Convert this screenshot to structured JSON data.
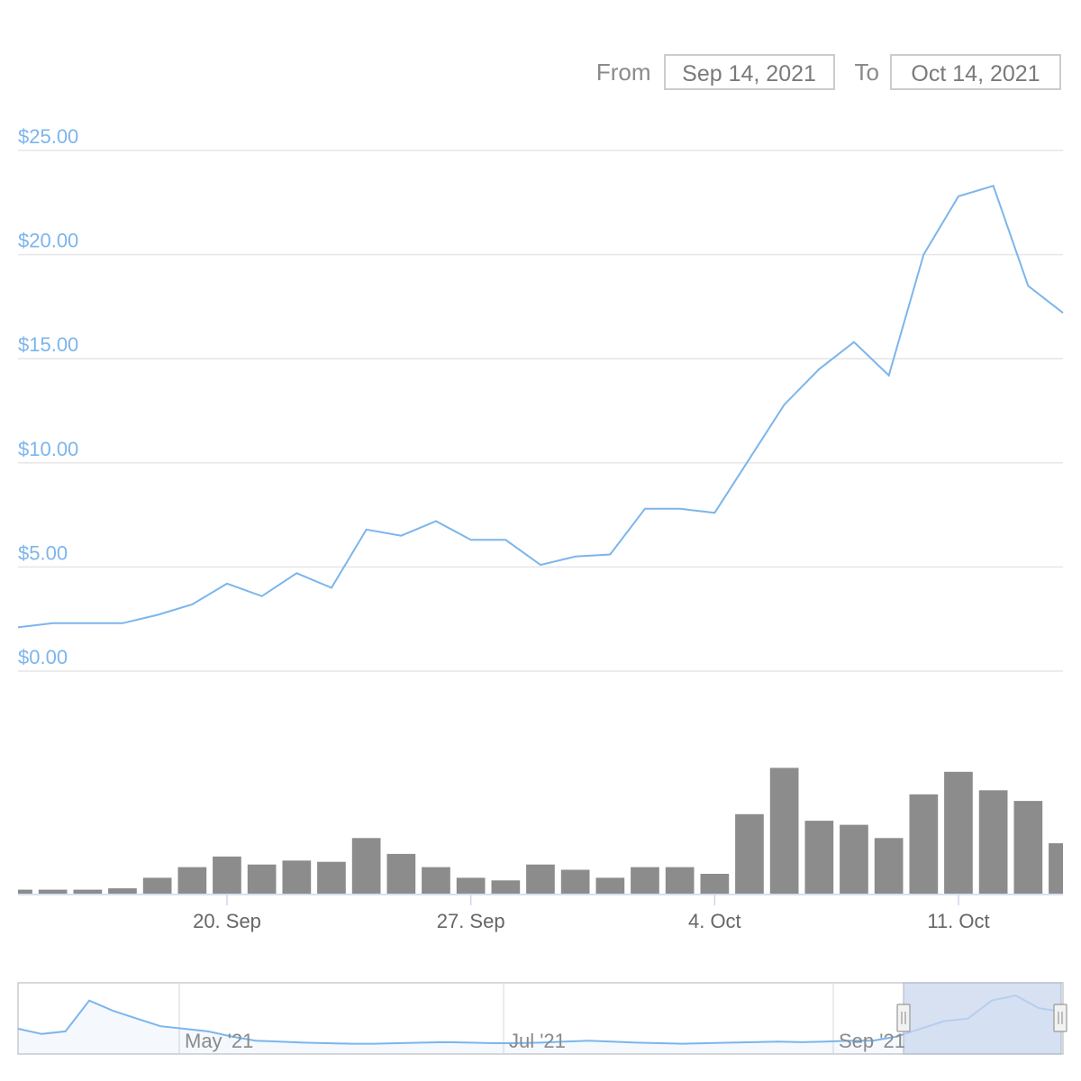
{
  "range_selector": {
    "from_label": "From",
    "from_value": "Sep 14, 2021",
    "to_label": "To",
    "to_value": "Oct 14, 2021"
  },
  "colors": {
    "price_line": "#7cb5ec",
    "volume_bars": "#8c8c8c",
    "grid": "#e6e6e6",
    "navigator_mask": "#c9d7ee"
  },
  "chart_data": {
    "type": "line",
    "y_axis": {
      "min": 0,
      "max": 25,
      "ticks": [
        0,
        5,
        10,
        15,
        20,
        25
      ],
      "tick_labels": [
        "$0.00",
        "$5.00",
        "$10.00",
        "$15.00",
        "$20.00",
        "$25.00"
      ]
    },
    "x_axis": {
      "range": [
        "2021-09-14",
        "2021-10-14"
      ],
      "ticks": [
        "2021-09-20",
        "2021-09-27",
        "2021-10-04",
        "2021-10-11"
      ],
      "tick_labels": [
        "20. Sep",
        "27. Sep",
        "4. Oct",
        "11. Oct"
      ]
    },
    "price": {
      "x": [
        "2021-09-14",
        "2021-09-15",
        "2021-09-16",
        "2021-09-17",
        "2021-09-18",
        "2021-09-19",
        "2021-09-20",
        "2021-09-21",
        "2021-09-22",
        "2021-09-23",
        "2021-09-24",
        "2021-09-25",
        "2021-09-26",
        "2021-09-27",
        "2021-09-28",
        "2021-09-29",
        "2021-09-30",
        "2021-10-01",
        "2021-10-02",
        "2021-10-03",
        "2021-10-04",
        "2021-10-05",
        "2021-10-06",
        "2021-10-07",
        "2021-10-08",
        "2021-10-09",
        "2021-10-10",
        "2021-10-11",
        "2021-10-12",
        "2021-10-13",
        "2021-10-14"
      ],
      "values": [
        2.1,
        2.3,
        2.3,
        2.3,
        2.7,
        3.2,
        4.2,
        3.6,
        4.7,
        4.0,
        6.8,
        6.5,
        7.2,
        6.3,
        6.3,
        5.1,
        5.5,
        5.6,
        7.8,
        7.8,
        7.6,
        10.2,
        12.8,
        14.5,
        15.8,
        14.2,
        20.0,
        22.8,
        23.3,
        18.5,
        17.2
      ]
    },
    "volume": {
      "x": [
        "2021-09-14",
        "2021-09-15",
        "2021-09-16",
        "2021-09-17",
        "2021-09-18",
        "2021-09-19",
        "2021-09-20",
        "2021-09-21",
        "2021-09-22",
        "2021-09-23",
        "2021-09-24",
        "2021-09-25",
        "2021-09-26",
        "2021-09-27",
        "2021-09-28",
        "2021-09-29",
        "2021-09-30",
        "2021-10-01",
        "2021-10-02",
        "2021-10-03",
        "2021-10-04",
        "2021-10-05",
        "2021-10-06",
        "2021-10-07",
        "2021-10-08",
        "2021-10-09",
        "2021-10-10",
        "2021-10-11",
        "2021-10-12",
        "2021-10-13",
        "2021-10-14"
      ],
      "values": [
        0.03,
        0.03,
        0.03,
        0.04,
        0.12,
        0.2,
        0.28,
        0.22,
        0.25,
        0.24,
        0.42,
        0.3,
        0.2,
        0.12,
        0.1,
        0.22,
        0.18,
        0.12,
        0.2,
        0.2,
        0.15,
        0.6,
        0.95,
        0.55,
        0.52,
        0.42,
        0.75,
        0.92,
        0.78,
        0.7,
        0.38
      ]
    },
    "navigator": {
      "tick_labels": [
        "May '21",
        "Jul '21",
        "Sep '21"
      ],
      "values": [
        0.35,
        0.25,
        0.3,
        0.9,
        0.7,
        0.55,
        0.4,
        0.35,
        0.3,
        0.2,
        0.12,
        0.1,
        0.08,
        0.07,
        0.06,
        0.06,
        0.07,
        0.08,
        0.09,
        0.08,
        0.07,
        0.07,
        0.08,
        0.1,
        0.12,
        0.1,
        0.08,
        0.07,
        0.06,
        0.07,
        0.08,
        0.09,
        0.1,
        0.09,
        0.1,
        0.12,
        0.12,
        0.2,
        0.35,
        0.5,
        0.55,
        0.9,
        1.0,
        0.75,
        0.68
      ]
    }
  }
}
